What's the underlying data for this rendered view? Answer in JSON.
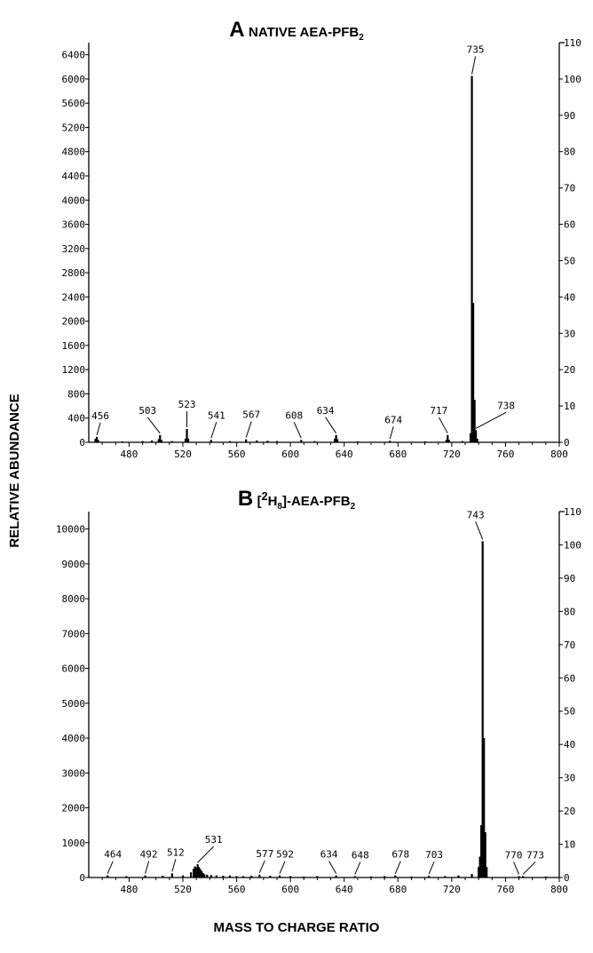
{
  "titles": {
    "a_letter": "A",
    "a_text": "NATIVE AEA-PFB",
    "a_sub": "2",
    "b_letter": "B",
    "b_pre": "[",
    "b_sup": "2",
    "b_h": "H",
    "b_hsub": "8",
    "b_post": "]-AEA-PFB",
    "b_sub": "2"
  },
  "ylabel": "RELATIVE ABUNDANCE",
  "xlabel": "MASS TO CHARGE RATIO",
  "chart_data": [
    {
      "type": "bar",
      "title": "A NATIVE AEA-PFB2",
      "xlim": [
        450,
        800
      ],
      "ylim": [
        0,
        6600
      ],
      "y2lim": [
        0,
        110
      ],
      "xticks": [
        480,
        520,
        560,
        600,
        640,
        680,
        720,
        760,
        800
      ],
      "yticks": [
        0,
        400,
        800,
        1200,
        1600,
        2000,
        2400,
        2800,
        3200,
        3600,
        4000,
        4400,
        4800,
        5200,
        5600,
        6000,
        6400
      ],
      "y2ticks": [
        0,
        10,
        20,
        30,
        40,
        50,
        60,
        70,
        80,
        90,
        100,
        110
      ],
      "peaks": [
        {
          "mz": 455,
          "abundance": 60
        },
        {
          "mz": 456,
          "abundance": 90
        },
        {
          "mz": 457,
          "abundance": 40
        },
        {
          "mz": 475,
          "abundance": 15
        },
        {
          "mz": 490,
          "abundance": 20
        },
        {
          "mz": 497,
          "abundance": 30
        },
        {
          "mz": 502,
          "abundance": 50
        },
        {
          "mz": 503,
          "abundance": 120
        },
        {
          "mz": 504,
          "abundance": 40
        },
        {
          "mz": 512,
          "abundance": 20
        },
        {
          "mz": 522,
          "abundance": 60
        },
        {
          "mz": 523,
          "abundance": 220
        },
        {
          "mz": 524,
          "abundance": 60
        },
        {
          "mz": 541,
          "abundance": 40
        },
        {
          "mz": 555,
          "abundance": 20
        },
        {
          "mz": 567,
          "abundance": 50
        },
        {
          "mz": 575,
          "abundance": 30
        },
        {
          "mz": 583,
          "abundance": 25
        },
        {
          "mz": 590,
          "abundance": 20
        },
        {
          "mz": 608,
          "abundance": 40
        },
        {
          "mz": 618,
          "abundance": 20
        },
        {
          "mz": 633,
          "abundance": 60
        },
        {
          "mz": 634,
          "abundance": 120
        },
        {
          "mz": 635,
          "abundance": 50
        },
        {
          "mz": 650,
          "abundance": 15
        },
        {
          "mz": 674,
          "abundance": 25
        },
        {
          "mz": 700,
          "abundance": 15
        },
        {
          "mz": 716,
          "abundance": 40
        },
        {
          "mz": 717,
          "abundance": 120
        },
        {
          "mz": 718,
          "abundance": 40
        },
        {
          "mz": 728,
          "abundance": 20
        },
        {
          "mz": 734,
          "abundance": 150
        },
        {
          "mz": 735,
          "abundance": 6050
        },
        {
          "mz": 736,
          "abundance": 2300
        },
        {
          "mz": 737,
          "abundance": 700
        },
        {
          "mz": 738,
          "abundance": 200
        },
        {
          "mz": 739,
          "abundance": 60
        }
      ],
      "labels": [
        {
          "text": "456",
          "mz": 456,
          "abundance": 90
        },
        {
          "text": "503",
          "mz": 503,
          "abundance": 120
        },
        {
          "text": "523",
          "mz": 523,
          "abundance": 220
        },
        {
          "text": "541",
          "mz": 541,
          "abundance": 40
        },
        {
          "text": "567",
          "mz": 567,
          "abundance": 50
        },
        {
          "text": "608",
          "mz": 608,
          "abundance": 40
        },
        {
          "text": "634",
          "mz": 634,
          "abundance": 120
        },
        {
          "text": "674",
          "mz": 674,
          "abundance": 25
        },
        {
          "text": "717",
          "mz": 717,
          "abundance": 120
        },
        {
          "text": "735",
          "mz": 735,
          "abundance": 6050
        },
        {
          "text": "738",
          "mz": 738,
          "abundance": 200
        }
      ]
    },
    {
      "type": "bar",
      "title": "B [2H8]-AEA-PFB2",
      "xlim": [
        450,
        800
      ],
      "ylim": [
        0,
        10500
      ],
      "y2lim": [
        0,
        110
      ],
      "xticks": [
        480,
        520,
        560,
        600,
        640,
        680,
        720,
        760,
        800
      ],
      "yticks": [
        0,
        1000,
        2000,
        3000,
        4000,
        5000,
        6000,
        7000,
        8000,
        9000,
        10000
      ],
      "y2ticks": [
        0,
        10,
        20,
        30,
        40,
        50,
        60,
        70,
        80,
        90,
        100,
        110
      ],
      "peaks": [
        {
          "mz": 464,
          "abundance": 60
        },
        {
          "mz": 478,
          "abundance": 40
        },
        {
          "mz": 492,
          "abundance": 60
        },
        {
          "mz": 505,
          "abundance": 50
        },
        {
          "mz": 512,
          "abundance": 120
        },
        {
          "mz": 520,
          "abundance": 60
        },
        {
          "mz": 526,
          "abundance": 150
        },
        {
          "mz": 528,
          "abundance": 250
        },
        {
          "mz": 529,
          "abundance": 320
        },
        {
          "mz": 530,
          "abundance": 280
        },
        {
          "mz": 531,
          "abundance": 380
        },
        {
          "mz": 532,
          "abundance": 300
        },
        {
          "mz": 533,
          "abundance": 240
        },
        {
          "mz": 534,
          "abundance": 180
        },
        {
          "mz": 535,
          "abundance": 130
        },
        {
          "mz": 536,
          "abundance": 90
        },
        {
          "mz": 538,
          "abundance": 80
        },
        {
          "mz": 541,
          "abundance": 70
        },
        {
          "mz": 545,
          "abundance": 60
        },
        {
          "mz": 550,
          "abundance": 50
        },
        {
          "mz": 555,
          "abundance": 60
        },
        {
          "mz": 560,
          "abundance": 40
        },
        {
          "mz": 565,
          "abundance": 40
        },
        {
          "mz": 571,
          "abundance": 50
        },
        {
          "mz": 577,
          "abundance": 80
        },
        {
          "mz": 585,
          "abundance": 50
        },
        {
          "mz": 592,
          "abundance": 60
        },
        {
          "mz": 600,
          "abundance": 40
        },
        {
          "mz": 610,
          "abundance": 30
        },
        {
          "mz": 620,
          "abundance": 40
        },
        {
          "mz": 634,
          "abundance": 60
        },
        {
          "mz": 648,
          "abundance": 40
        },
        {
          "mz": 660,
          "abundance": 30
        },
        {
          "mz": 670,
          "abundance": 40
        },
        {
          "mz": 678,
          "abundance": 60
        },
        {
          "mz": 690,
          "abundance": 30
        },
        {
          "mz": 703,
          "abundance": 50
        },
        {
          "mz": 715,
          "abundance": 40
        },
        {
          "mz": 725,
          "abundance": 60
        },
        {
          "mz": 735,
          "abundance": 100
        },
        {
          "mz": 740,
          "abundance": 300
        },
        {
          "mz": 741,
          "abundance": 600
        },
        {
          "mz": 742,
          "abundance": 1500
        },
        {
          "mz": 743,
          "abundance": 9650
        },
        {
          "mz": 744,
          "abundance": 4000
        },
        {
          "mz": 745,
          "abundance": 1300
        },
        {
          "mz": 746,
          "abundance": 300
        },
        {
          "mz": 770,
          "abundance": 40
        },
        {
          "mz": 773,
          "abundance": 40
        },
        {
          "mz": 790,
          "abundance": 30
        }
      ],
      "labels": [
        {
          "text": "464",
          "mz": 464,
          "abundance": 60
        },
        {
          "text": "492",
          "mz": 492,
          "abundance": 60
        },
        {
          "text": "512",
          "mz": 512,
          "abundance": 120
        },
        {
          "text": "531",
          "mz": 531,
          "abundance": 380
        },
        {
          "text": "577",
          "mz": 577,
          "abundance": 80
        },
        {
          "text": "592",
          "mz": 592,
          "abundance": 60
        },
        {
          "text": "634",
          "mz": 634,
          "abundance": 60
        },
        {
          "text": "648",
          "mz": 648,
          "abundance": 40
        },
        {
          "text": "678",
          "mz": 678,
          "abundance": 60
        },
        {
          "text": "703",
          "mz": 703,
          "abundance": 50
        },
        {
          "text": "743",
          "mz": 743,
          "abundance": 9650
        },
        {
          "text": "770",
          "mz": 770,
          "abundance": 40
        },
        {
          "text": "773",
          "mz": 773,
          "abundance": 40
        }
      ]
    }
  ]
}
